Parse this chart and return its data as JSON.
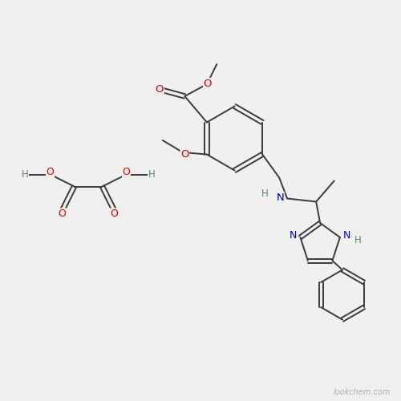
{
  "background_color": "#f0f0f0",
  "watermark": "lookchem.com",
  "watermark_color": "#aaaaaa",
  "watermark_fontsize": 7,
  "bond_color": "#3a3a3a",
  "bond_width": 1.4,
  "atom_colors": {
    "O": "#dd0000",
    "N": "#0000cc",
    "C": "#3a3a3a",
    "H": "#558855"
  }
}
